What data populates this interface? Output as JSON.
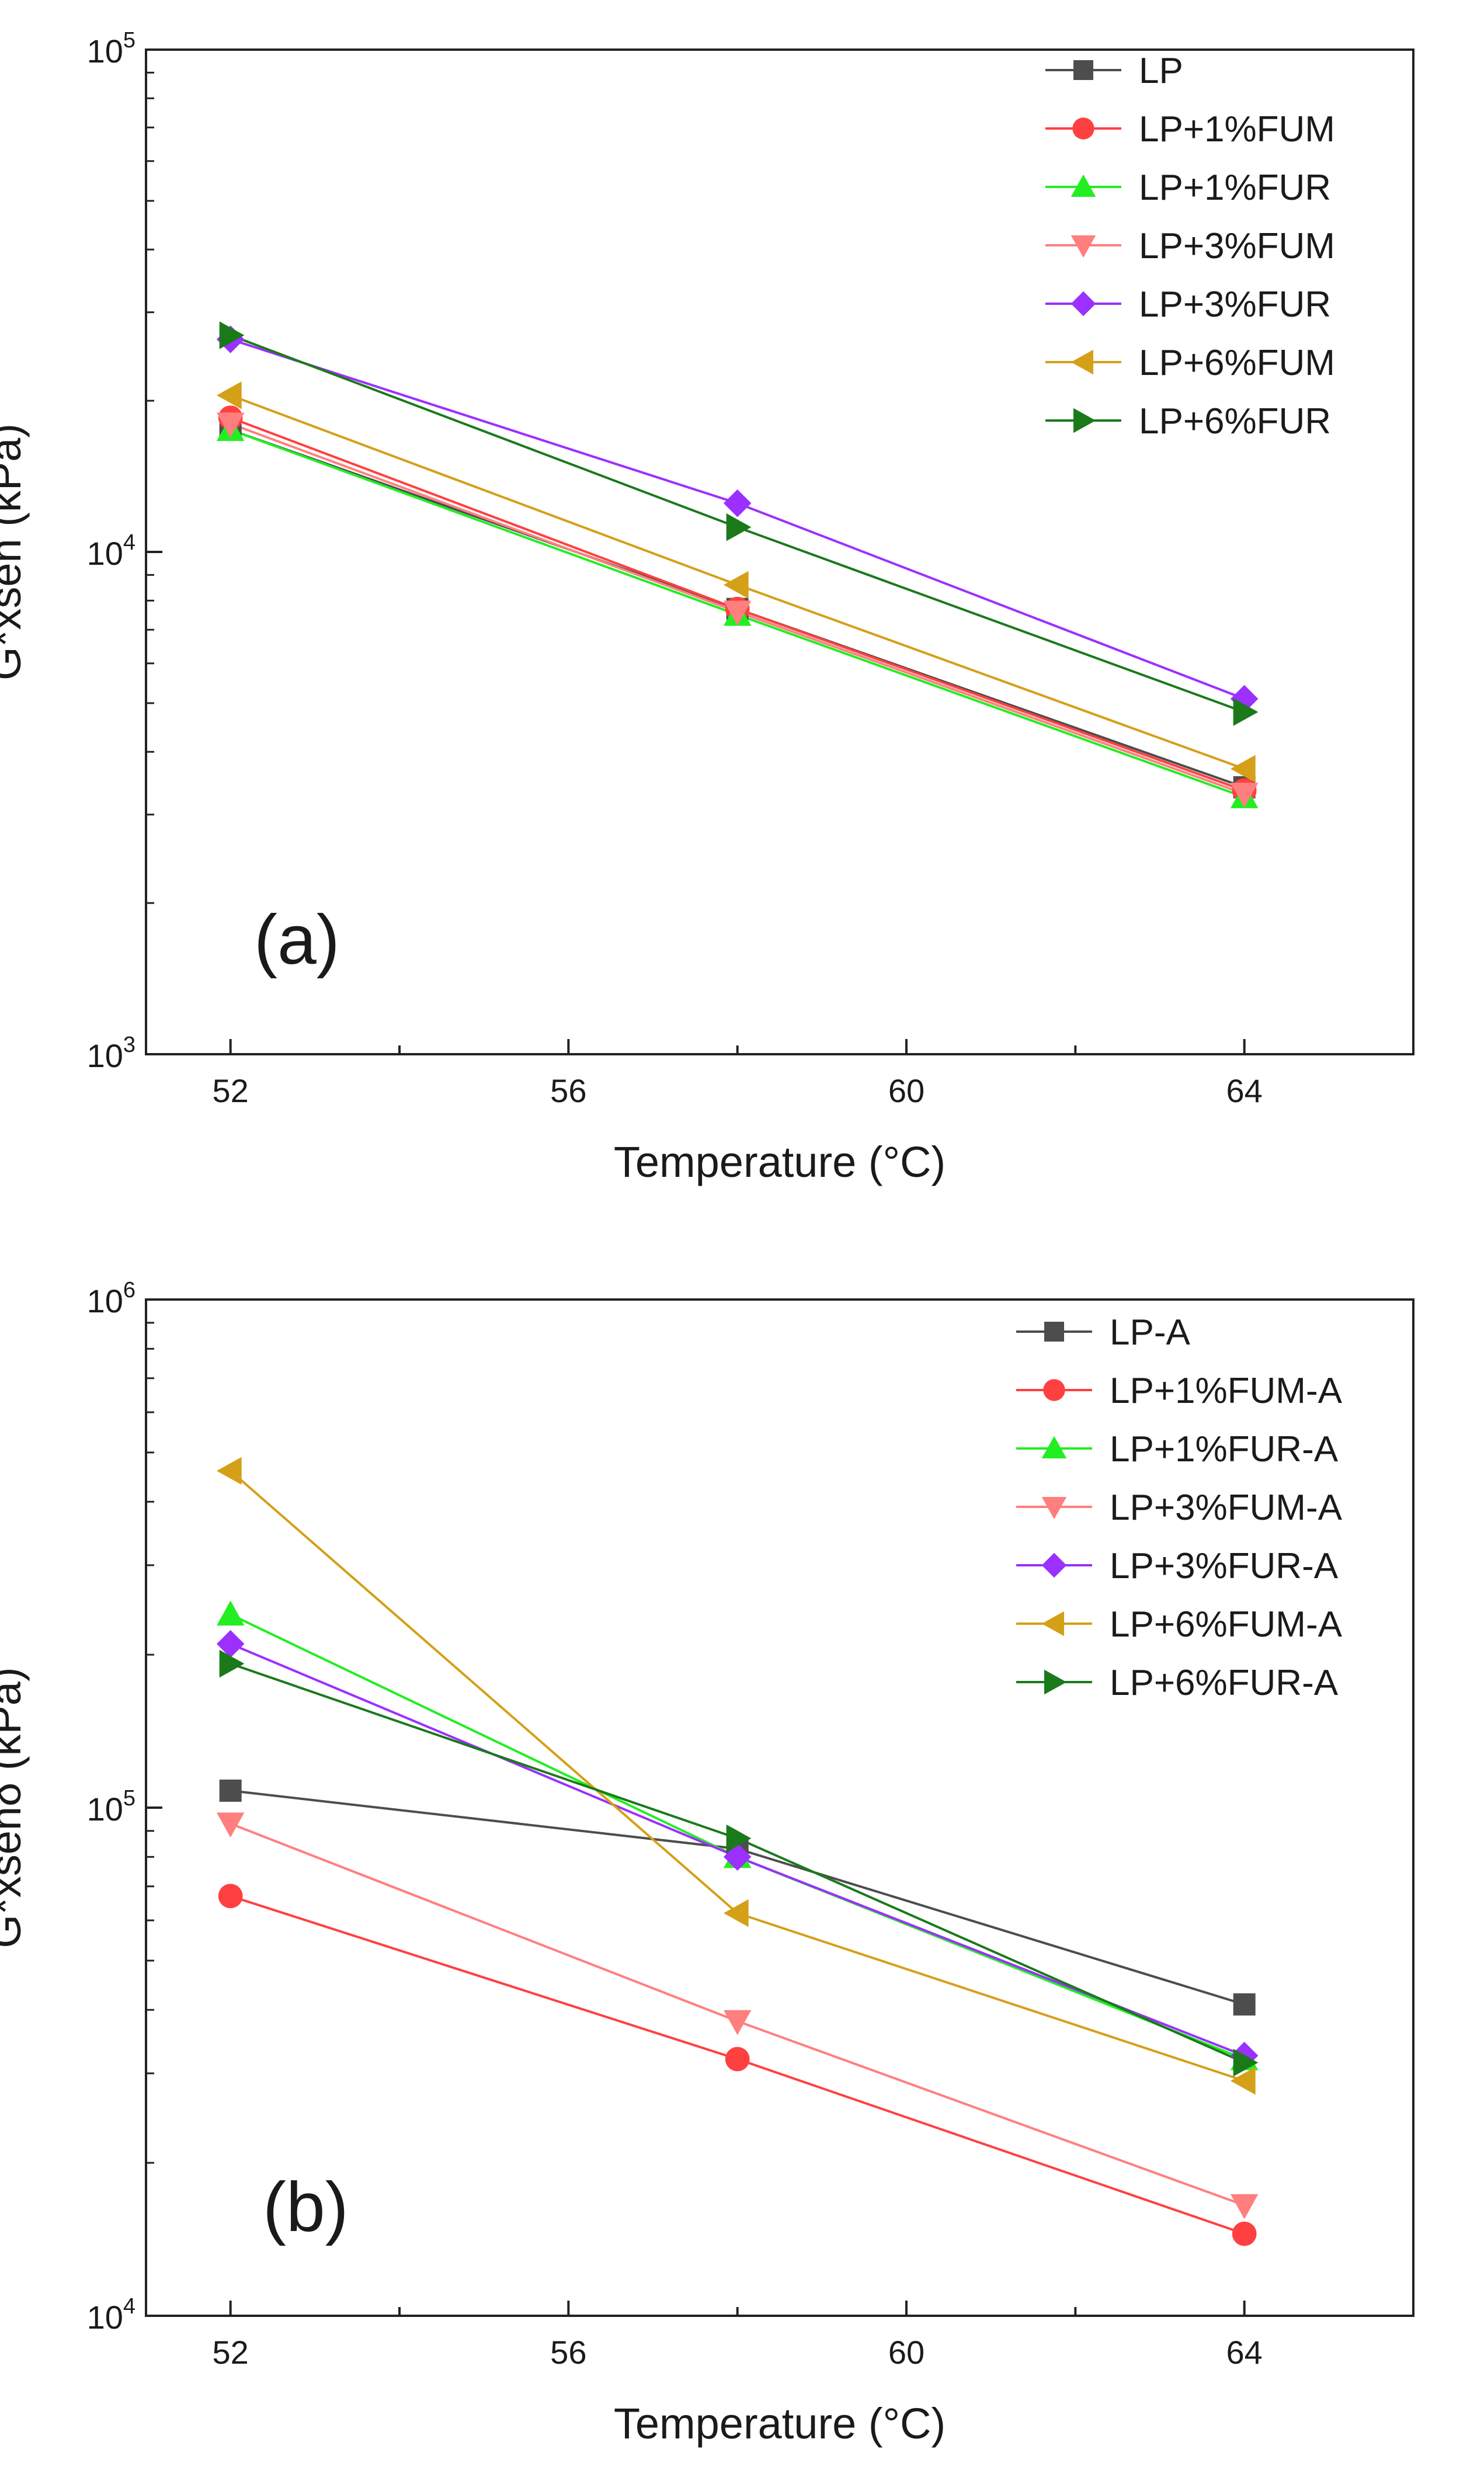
{
  "chart_data": [
    {
      "type": "line",
      "panel_label": "(a)",
      "xlabel": "Temperature (°C)",
      "ylabel": "G*xsen (kPa)",
      "yscale": "log",
      "xlim": [
        51,
        66
      ],
      "ylim": [
        1000,
        100000
      ],
      "xticks": [
        52,
        56,
        60,
        64
      ],
      "xtick_labels": [
        "52",
        "56",
        "60",
        "64"
      ],
      "yticks": [
        {
          "value": 1000,
          "base": "10",
          "exp": "3"
        },
        {
          "value": 10000,
          "base": "10",
          "exp": "4"
        },
        {
          "value": 100000,
          "base": "10",
          "exp": "5"
        }
      ],
      "legend_position": "top-right",
      "x": [
        52,
        58,
        64
      ],
      "series": [
        {
          "name": "LP",
          "color": "#4d4d4d",
          "marker": "square",
          "values": [
            17500,
            7700,
            3400
          ]
        },
        {
          "name": "LP+1%FUM",
          "color": "#ff4040",
          "marker": "circle",
          "values": [
            18500,
            7700,
            3350
          ]
        },
        {
          "name": "LP+1%FUR",
          "color": "#22ee22",
          "marker": "triangle-up",
          "values": [
            17500,
            7500,
            3250
          ]
        },
        {
          "name": "LP+3%FUM",
          "color": "#ff7f7f",
          "marker": "triangle-down",
          "values": [
            18000,
            7600,
            3300
          ]
        },
        {
          "name": "LP+3%FUR",
          "color": "#9b30ff",
          "marker": "diamond",
          "values": [
            26500,
            12500,
            5100
          ]
        },
        {
          "name": "LP+6%FUM",
          "color": "#d4a017",
          "marker": "triangle-left",
          "values": [
            20500,
            8600,
            3700
          ]
        },
        {
          "name": "LP+6%FUR",
          "color": "#1a7a1a",
          "marker": "triangle-right",
          "values": [
            27000,
            11200,
            4800
          ]
        }
      ]
    },
    {
      "type": "line",
      "panel_label": "(b)",
      "xlabel": "Temperature (°C)",
      "ylabel": "G*xsenδ (kPa)",
      "yscale": "log",
      "xlim": [
        51,
        66
      ],
      "ylim": [
        10000,
        1000000
      ],
      "xticks": [
        52,
        56,
        60,
        64
      ],
      "xtick_labels": [
        "52",
        "56",
        "60",
        "64"
      ],
      "yticks": [
        {
          "value": 10000,
          "base": "10",
          "exp": "4"
        },
        {
          "value": 100000,
          "base": "10",
          "exp": "5"
        },
        {
          "value": 1000000,
          "base": "10",
          "exp": "6"
        }
      ],
      "legend_position": "top-right",
      "x": [
        52,
        58,
        64
      ],
      "series": [
        {
          "name": "LP-A",
          "color": "#4d4d4d",
          "marker": "square",
          "values": [
            108000,
            83000,
            41000
          ]
        },
        {
          "name": "LP+1%FUM-A",
          "color": "#ff4040",
          "marker": "circle",
          "values": [
            67000,
            32000,
            14500
          ]
        },
        {
          "name": "LP+1%FUR-A",
          "color": "#22ee22",
          "marker": "triangle-up",
          "values": [
            240000,
            80000,
            32000
          ]
        },
        {
          "name": "LP+3%FUM-A",
          "color": "#ff7f7f",
          "marker": "triangle-down",
          "values": [
            93000,
            38000,
            16500
          ]
        },
        {
          "name": "LP+3%FUR-A",
          "color": "#9b30ff",
          "marker": "diamond",
          "values": [
            210000,
            80000,
            32500
          ]
        },
        {
          "name": "LP+6%FUM-A",
          "color": "#d4a017",
          "marker": "triangle-left",
          "values": [
            460000,
            62000,
            29000
          ]
        },
        {
          "name": "LP+6%FUR-A",
          "color": "#1a7a1a",
          "marker": "triangle-right",
          "values": [
            192000,
            87000,
            31500
          ]
        }
      ]
    }
  ]
}
